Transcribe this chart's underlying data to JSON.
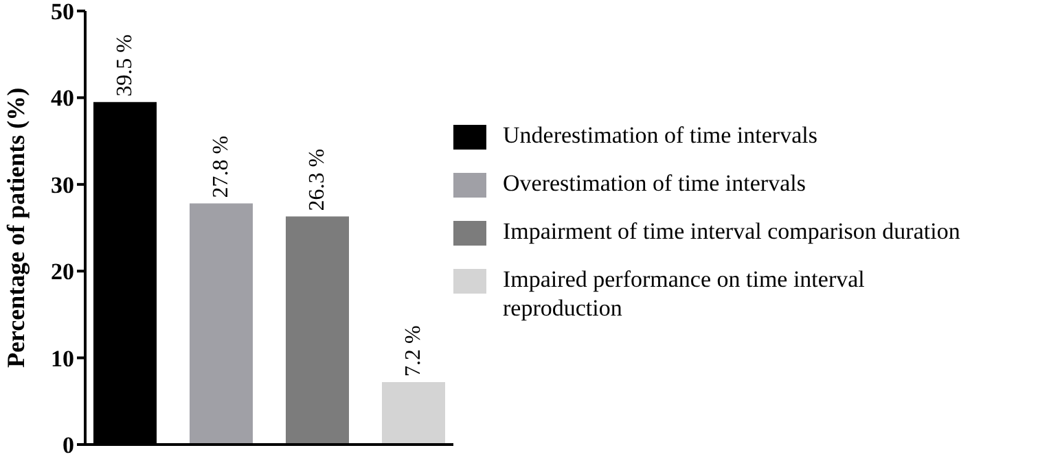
{
  "chart_data": {
    "type": "bar",
    "ylabel": "Percentage of patients (%)",
    "categories": [
      null
    ],
    "series": [
      {
        "name": "Underestimation of time intervals",
        "color": "#000000",
        "values": [
          39.5
        ],
        "value_labels": [
          "39.5 %"
        ]
      },
      {
        "name": "Overestimation of time intervals",
        "color": "#a0a0a6",
        "values": [
          27.8
        ],
        "value_labels": [
          "27.8 %"
        ]
      },
      {
        "name": "Impairment of time interval comparison duration",
        "color": "#7c7c7c",
        "values": [
          26.3
        ],
        "value_labels": [
          "26.3 %"
        ]
      },
      {
        "name": "Impaired performance on time interval reproduction",
        "color": "#d4d4d4",
        "values": [
          7.2
        ],
        "value_labels": [
          "7.2 %"
        ]
      }
    ],
    "ylim": [
      0,
      50
    ],
    "yticks": [
      0,
      10,
      20,
      30,
      40,
      50
    ],
    "legend": "right",
    "tick_labels": "y"
  }
}
